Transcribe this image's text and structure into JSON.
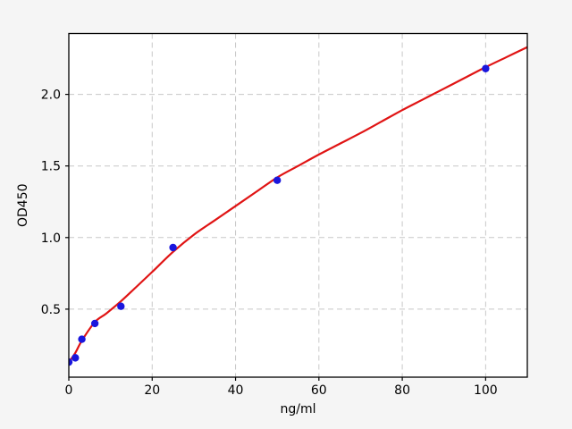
{
  "chart_data": {
    "type": "scatter",
    "title": "",
    "xlabel": "ng/ml",
    "ylabel": "OD450",
    "xlim": [
      0,
      110
    ],
    "ylim": [
      0.025,
      2.425
    ],
    "x_ticks": [
      0,
      20,
      40,
      60,
      80,
      100
    ],
    "x_tick_labels": [
      "0",
      "20",
      "40",
      "60",
      "80",
      "100"
    ],
    "y_ticks": [
      0.5,
      1.0,
      1.5,
      2.0
    ],
    "y_tick_labels": [
      "0.5",
      "1.0",
      "1.5",
      "2.0"
    ],
    "grid": true,
    "grid_style": "dashed",
    "legend": "none",
    "series": [
      {
        "name": "standard-points",
        "type": "scatter",
        "color": "#1a16dd",
        "marker": "circle",
        "data": [
          [
            0,
            0.13
          ],
          [
            1.5625,
            0.16
          ],
          [
            3.125,
            0.29
          ],
          [
            6.25,
            0.4
          ],
          [
            12.5,
            0.52
          ],
          [
            25,
            0.93
          ],
          [
            50,
            1.4
          ],
          [
            100,
            2.18
          ]
        ]
      },
      {
        "name": "fitted-curve",
        "type": "line",
        "color": "#e01414",
        "data": [
          [
            0,
            0.13
          ],
          [
            1.5625,
            0.195
          ],
          [
            3.125,
            0.28
          ],
          [
            6.25,
            0.41
          ],
          [
            9,
            0.47
          ],
          [
            12.5,
            0.555
          ],
          [
            16,
            0.65
          ],
          [
            20,
            0.76
          ],
          [
            25,
            0.9
          ],
          [
            30,
            1.02
          ],
          [
            35,
            1.12
          ],
          [
            40,
            1.22
          ],
          [
            45,
            1.32
          ],
          [
            50,
            1.42
          ],
          [
            55,
            1.5
          ],
          [
            60,
            1.58
          ],
          [
            65,
            1.655
          ],
          [
            70,
            1.73
          ],
          [
            75,
            1.81
          ],
          [
            80,
            1.89
          ],
          [
            85,
            1.965
          ],
          [
            90,
            2.04
          ],
          [
            95,
            2.115
          ],
          [
            100,
            2.19
          ],
          [
            105,
            2.26
          ],
          [
            110,
            2.33
          ]
        ]
      }
    ],
    "colors": {
      "figure_bg": "#f5f5f5",
      "axes_bg": "#ffffff",
      "grid": "#c8c8c8",
      "spine": "#000000",
      "tick": "#000000",
      "curve": "#e01414",
      "marker": "#1a16dd"
    }
  }
}
